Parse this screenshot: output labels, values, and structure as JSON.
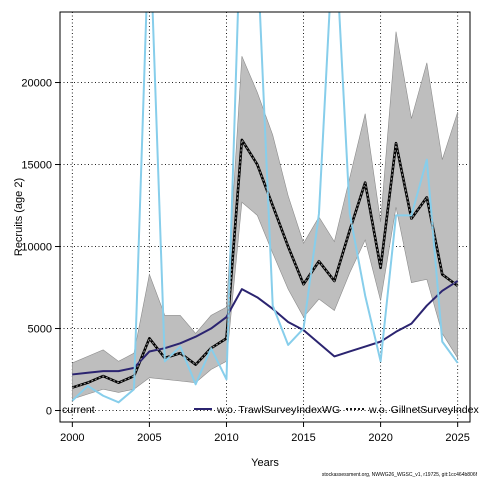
{
  "chart_data": {
    "type": "line",
    "title": "",
    "xlabel": "Years",
    "ylabel": "Recruits (age 2)",
    "xlim": [
      1999.2,
      2025.8
    ],
    "ylim": [
      -700,
      24300
    ],
    "x_ticks": [
      2000,
      2005,
      2010,
      2015,
      2020,
      2025
    ],
    "y_ticks": [
      0,
      5000,
      10000,
      15000,
      20000
    ],
    "grid": true,
    "legend": {
      "placement": "bottom",
      "entries": [
        "current",
        "w.o. TrawlSurveyIndexWG",
        "w.o. GillnetSurveyIndex"
      ]
    },
    "footer": "stockassessment.org, NWWG26_WGSC_v1, r19725, git:1cc464b806f",
    "colors": {
      "band": "#bebebe",
      "current": "#000000",
      "trawl": "#2b2470",
      "gillnet_dashed": "#1a1a1a",
      "gillnet_solid": "#87ceeb"
    },
    "series": [
      {
        "name": "current",
        "x": [
          2000,
          2001,
          2002,
          2003,
          2004,
          2005,
          2006,
          2007,
          2008,
          2009,
          2010,
          2011,
          2012,
          2013,
          2014,
          2015,
          2016,
          2017,
          2018,
          2019,
          2020,
          2021,
          2022,
          2023,
          2024,
          2025
        ],
        "values": [
          1400,
          1700,
          2100,
          1700,
          2100,
          4400,
          3200,
          3500,
          2800,
          3800,
          4400,
          16500,
          15000,
          12500,
          10000,
          7700,
          9100,
          7900,
          11000,
          13900,
          8700,
          16300,
          11700,
          13000,
          8300,
          7600
        ],
        "lower": [
          700,
          1000,
          1300,
          1100,
          1300,
          2000,
          1900,
          1800,
          1700,
          2500,
          3000,
          12700,
          11900,
          9600,
          7400,
          5700,
          6800,
          6100,
          8400,
          10400,
          6700,
          12400,
          7800,
          8000,
          4700,
          3200
        ],
        "upper": [
          2900,
          3300,
          3700,
          3000,
          3500,
          8300,
          5800,
          5800,
          4700,
          5800,
          6300,
          21600,
          19400,
          16800,
          13100,
          10200,
          11800,
          10300,
          14200,
          18100,
          11500,
          23100,
          17800,
          21200,
          15300,
          18200
        ]
      },
      {
        "name": "w.o. TrawlSurveyIndexWG",
        "x": [
          2000,
          2001,
          2002,
          2003,
          2004,
          2005,
          2006,
          2007,
          2008,
          2009,
          2010,
          2011,
          2012,
          2013,
          2014,
          2015,
          2016,
          2017,
          2018,
          2019,
          2020,
          2021,
          2022,
          2023,
          2024,
          2025
        ],
        "values": [
          2200,
          2300,
          2400,
          2400,
          2600,
          3600,
          3800,
          4100,
          4500,
          5000,
          5700,
          7400,
          6900,
          6200,
          5400,
          4900,
          4100,
          3300,
          3600,
          3900,
          4200,
          4800,
          5300,
          6400,
          7300,
          7900
        ]
      },
      {
        "name": "w.o. GillnetSurveyIndex",
        "x": [
          2000,
          2001,
          2002,
          2003,
          2004,
          2005,
          2006,
          2007,
          2008,
          2009,
          2010,
          2011,
          2012,
          2013,
          2014,
          2015,
          2016,
          2017,
          2018,
          2019,
          2020,
          2021,
          2022,
          2023,
          2024,
          2025
        ],
        "values": [
          600,
          1500,
          900,
          500,
          1300,
          30000,
          3000,
          3900,
          1600,
          3800,
          1900,
          32000,
          28000,
          6400,
          4000,
          5000,
          12000,
          30000,
          12000,
          7000,
          3000,
          11900,
          11900,
          15300,
          4200,
          2900
        ]
      }
    ]
  }
}
